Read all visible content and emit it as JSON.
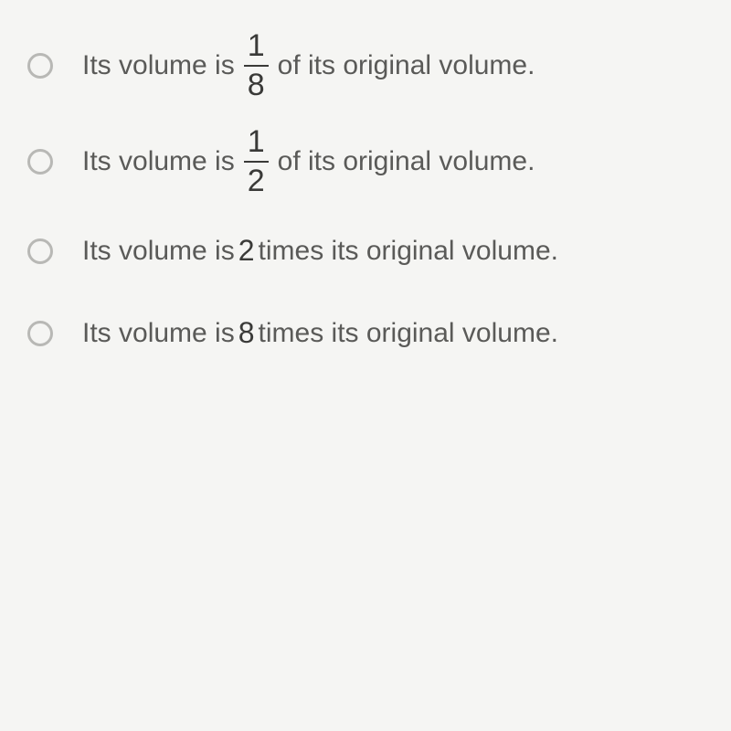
{
  "options": [
    {
      "text_before": "Its volume is",
      "has_fraction": true,
      "fraction_num": "1",
      "fraction_den": "8",
      "text_after": "of its original volume.",
      "inline_number": null
    },
    {
      "text_before": "Its volume is",
      "has_fraction": true,
      "fraction_num": "1",
      "fraction_den": "2",
      "text_after": "of its original volume.",
      "inline_number": null
    },
    {
      "text_before": "Its volume is",
      "has_fraction": false,
      "fraction_num": null,
      "fraction_den": null,
      "text_after": "times its original volume.",
      "inline_number": "2"
    },
    {
      "text_before": "Its volume is",
      "has_fraction": false,
      "fraction_num": null,
      "fraction_den": null,
      "text_after": "times its original volume.",
      "inline_number": "8"
    }
  ],
  "colors": {
    "background": "#f5f5f3",
    "text": "#5a5a58",
    "math_text": "#3a3a38",
    "radio_border": "#b8b8b5"
  }
}
